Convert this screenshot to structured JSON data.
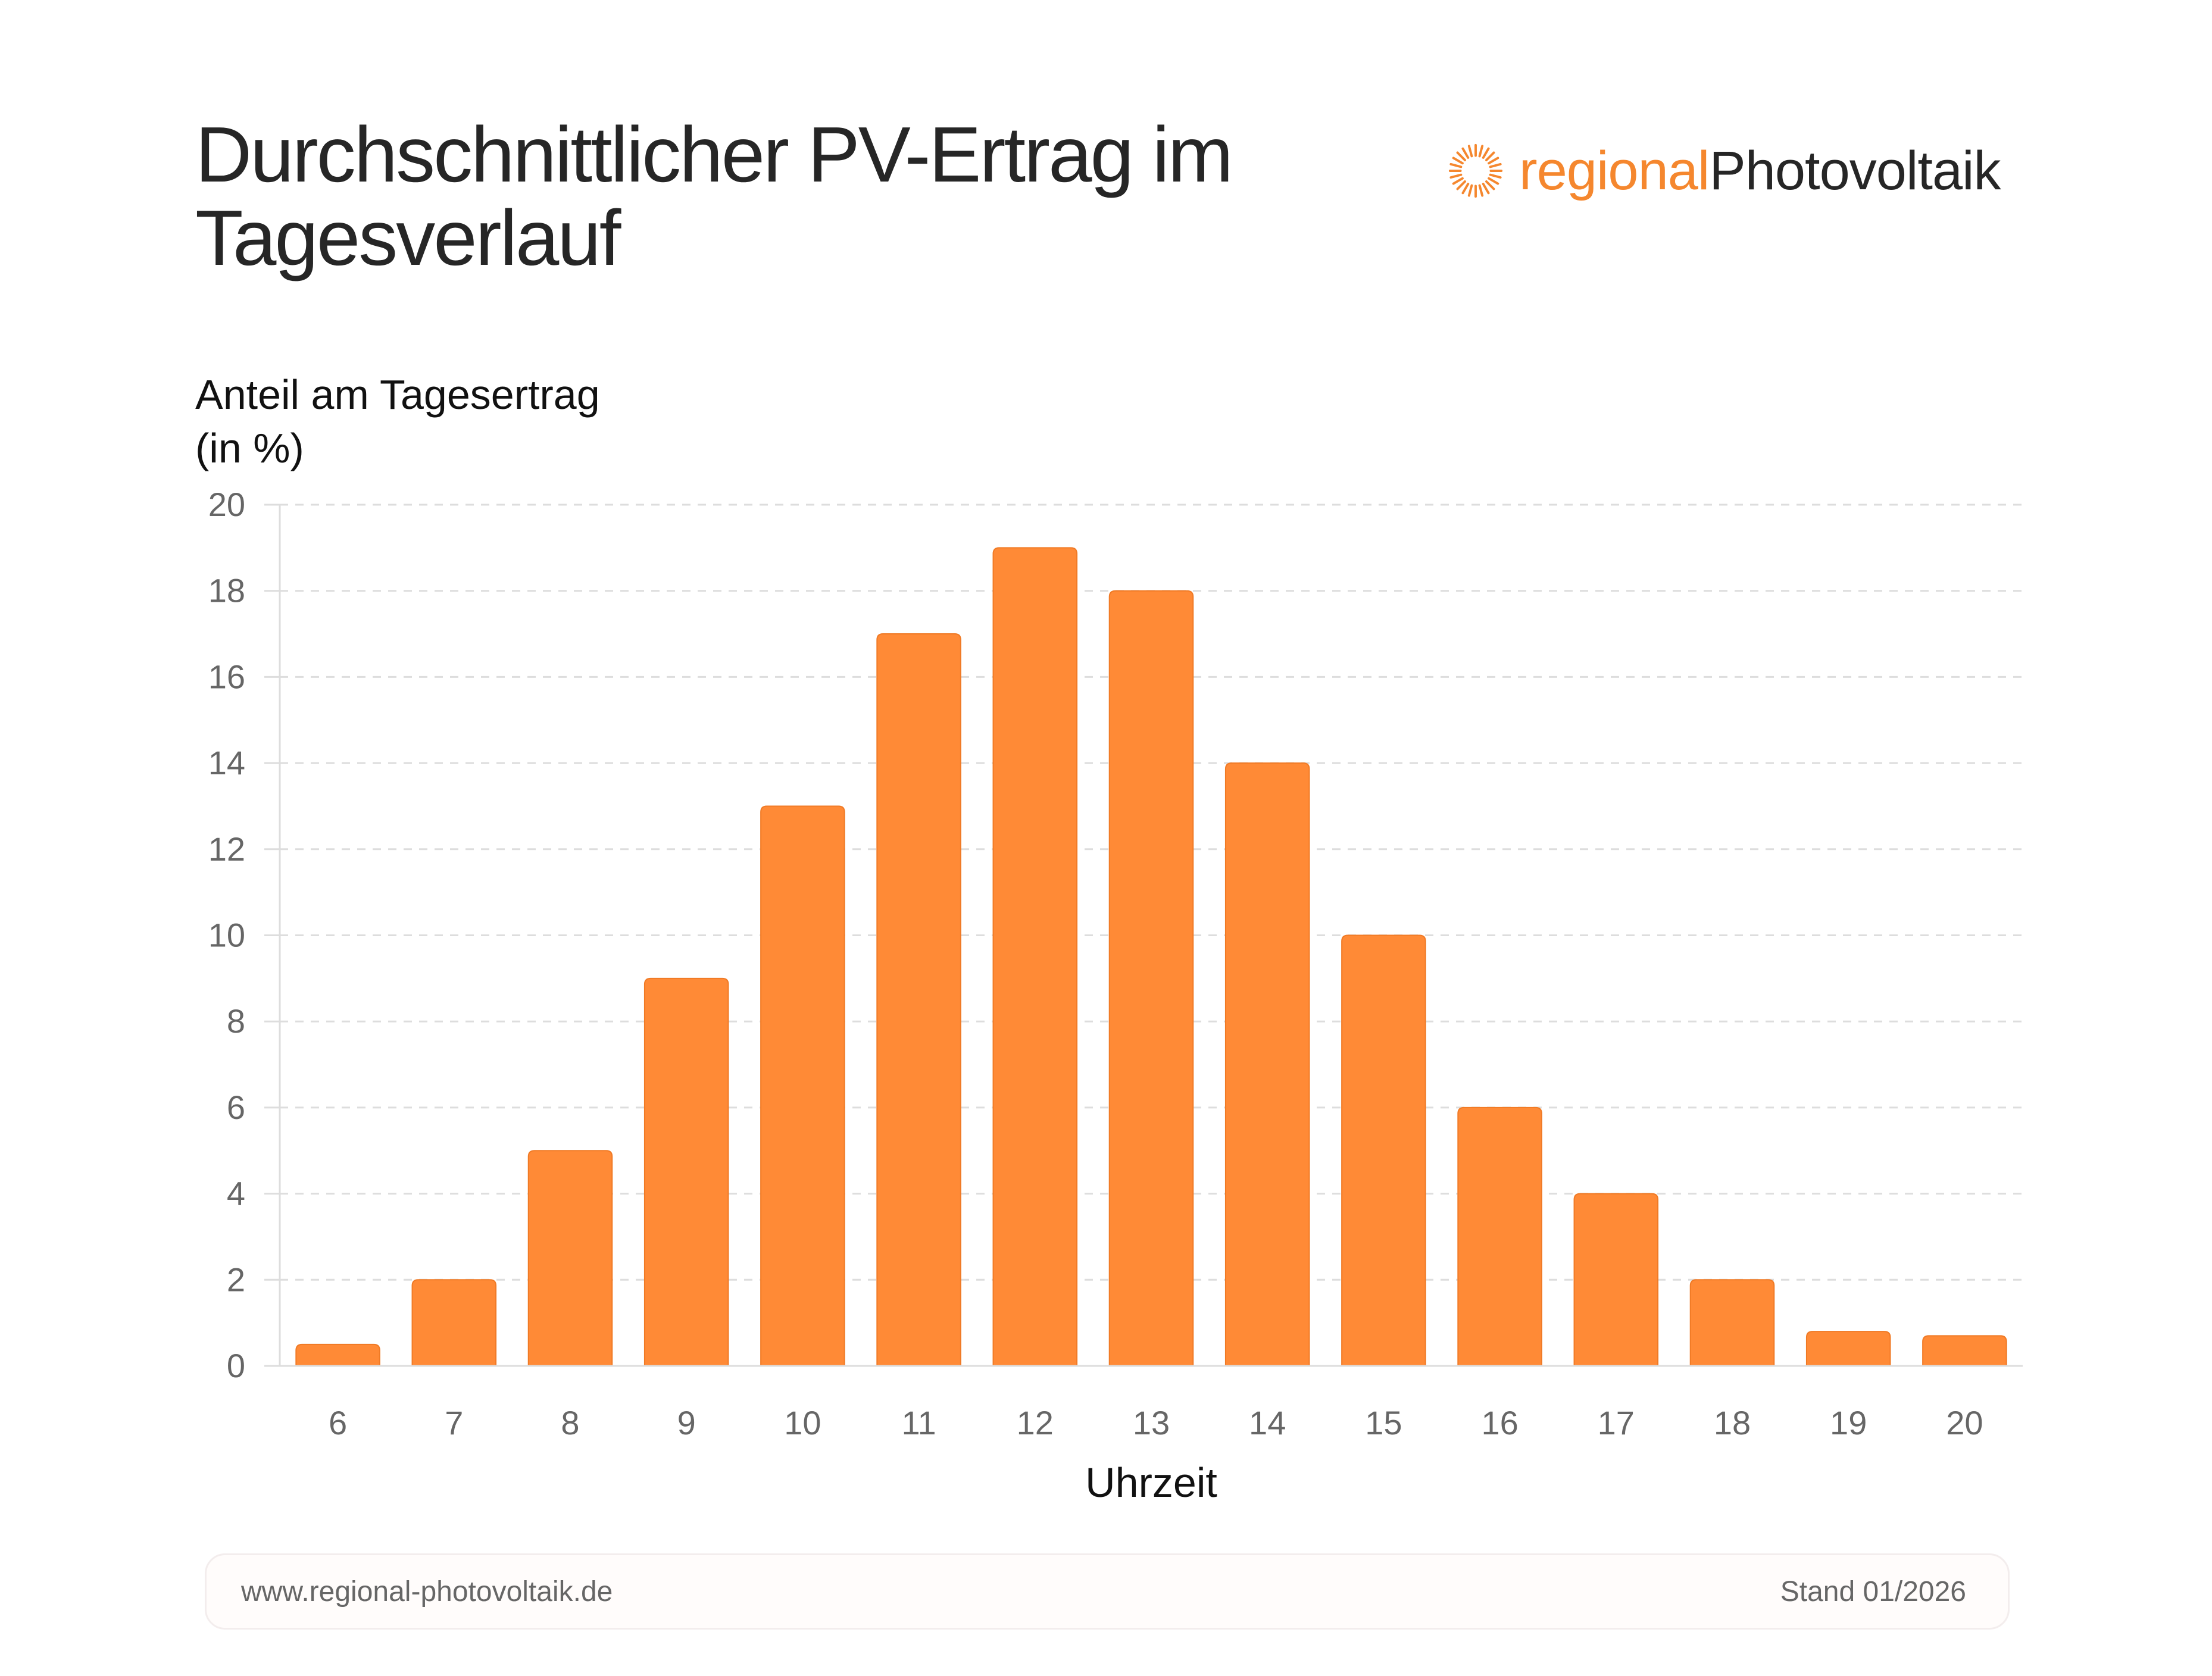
{
  "header": {
    "title": "Durchschnittlicher PV-Ertrag im Tagesverlauf",
    "logo": {
      "part1": "regional",
      "part2": "Photovoltaik",
      "icon": "sun-ray-icon",
      "color_primary": "#f5872e",
      "color_secondary": "#262626"
    }
  },
  "chart_data": {
    "type": "bar",
    "title": "Durchschnittlicher PV-Ertrag im Tagesverlauf",
    "ylabel_lines": [
      "Anteil am Tagesertrag",
      "(in %)"
    ],
    "ylabel": "Anteil am Tagesertrag (in %)",
    "xlabel": "Uhrzeit",
    "categories": [
      "6",
      "7",
      "8",
      "9",
      "10",
      "11",
      "12",
      "13",
      "14",
      "15",
      "16",
      "17",
      "18",
      "19",
      "20"
    ],
    "values": [
      0.5,
      2,
      5,
      9,
      13,
      17,
      19,
      18,
      14,
      10,
      6,
      4,
      2,
      0.8,
      0.7
    ],
    "ylim": [
      0,
      20
    ],
    "yticks": [
      0,
      2,
      4,
      6,
      8,
      10,
      12,
      14,
      16,
      18,
      20
    ],
    "grid": true,
    "bar_color": "#ff8a36"
  },
  "footer": {
    "url": "www.regional-photovoltaik.de",
    "stand": "Stand 01/2026"
  }
}
